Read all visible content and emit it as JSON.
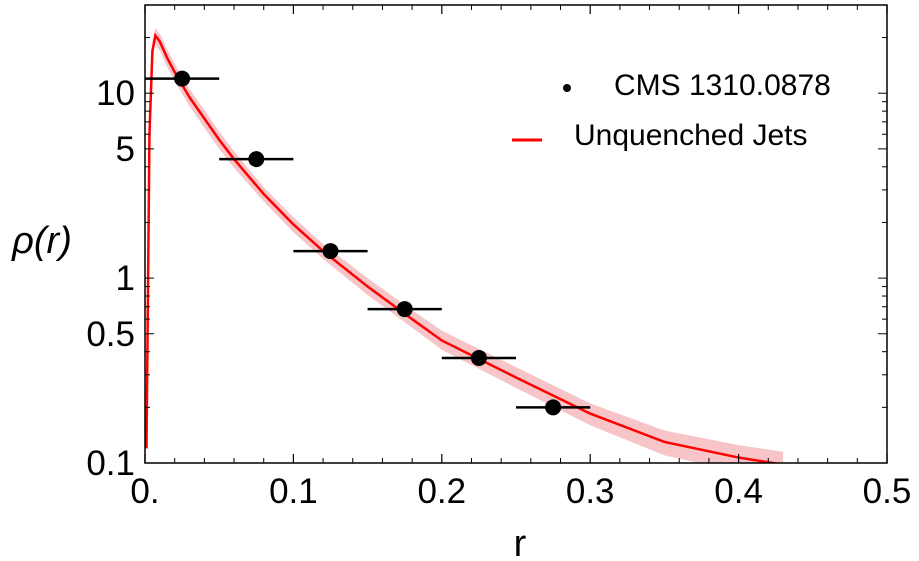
{
  "chart_data": {
    "type": "scatter",
    "xlabel": "r",
    "ylabel": "ρ(r)",
    "xlim": [
      0,
      0.5
    ],
    "ylim": [
      0.1,
      30
    ],
    "yscale": "log",
    "x_ticks": [
      {
        "value": 0,
        "label": "0."
      },
      {
        "value": 0.1,
        "label": "0.1"
      },
      {
        "value": 0.2,
        "label": "0.2"
      },
      {
        "value": 0.3,
        "label": "0.3"
      },
      {
        "value": 0.4,
        "label": "0.4"
      },
      {
        "value": 0.5,
        "label": "0.5"
      }
    ],
    "y_ticks": [
      {
        "value": 0.1,
        "label": "0.1"
      },
      {
        "value": 0.5,
        "label": "0.5"
      },
      {
        "value": 1,
        "label": "1"
      },
      {
        "value": 5,
        "label": "5"
      },
      {
        "value": 10,
        "label": "10"
      }
    ],
    "grid": false,
    "legend_position": "top-right",
    "series": [
      {
        "name": "CMS 1310.0878",
        "kind": "points_with_xerr",
        "color": "#000000",
        "points": [
          {
            "x": 0.025,
            "y": 12.0,
            "xerr": 0.025
          },
          {
            "x": 0.075,
            "y": 4.4,
            "xerr": 0.025
          },
          {
            "x": 0.125,
            "y": 1.4,
            "xerr": 0.025
          },
          {
            "x": 0.175,
            "y": 0.68,
            "xerr": 0.025
          },
          {
            "x": 0.225,
            "y": 0.37,
            "xerr": 0.025
          },
          {
            "x": 0.275,
            "y": 0.2,
            "xerr": 0.025
          }
        ]
      },
      {
        "name": "Unquenched Jets",
        "kind": "line_with_band",
        "color": "#ff0000",
        "band_color": "#f7c4c8",
        "x": [
          0.001,
          0.003,
          0.005,
          0.007,
          0.01,
          0.015,
          0.02,
          0.03,
          0.04,
          0.05,
          0.06,
          0.08,
          0.1,
          0.12,
          0.15,
          0.18,
          0.2,
          0.25,
          0.3,
          0.35,
          0.4,
          0.43
        ],
        "y": [
          0.12,
          6.0,
          17.0,
          20.5,
          19.0,
          15.5,
          13.0,
          9.5,
          7.3,
          5.6,
          4.4,
          2.85,
          1.95,
          1.4,
          0.9,
          0.6,
          0.46,
          0.29,
          0.185,
          0.13,
          0.107,
          0.098
        ],
        "y_low": [
          0.1,
          5.0,
          15.0,
          18.5,
          17.0,
          13.8,
          11.6,
          8.5,
          6.5,
          5.0,
          3.95,
          2.6,
          1.77,
          1.27,
          0.81,
          0.54,
          0.41,
          0.255,
          0.16,
          0.11,
          0.09,
          0.082
        ],
        "y_high": [
          0.14,
          7.0,
          19.0,
          22.5,
          21.0,
          17.2,
          14.4,
          10.5,
          8.1,
          6.2,
          4.85,
          3.1,
          2.13,
          1.53,
          1.0,
          0.67,
          0.52,
          0.33,
          0.21,
          0.15,
          0.125,
          0.115
        ]
      }
    ]
  }
}
